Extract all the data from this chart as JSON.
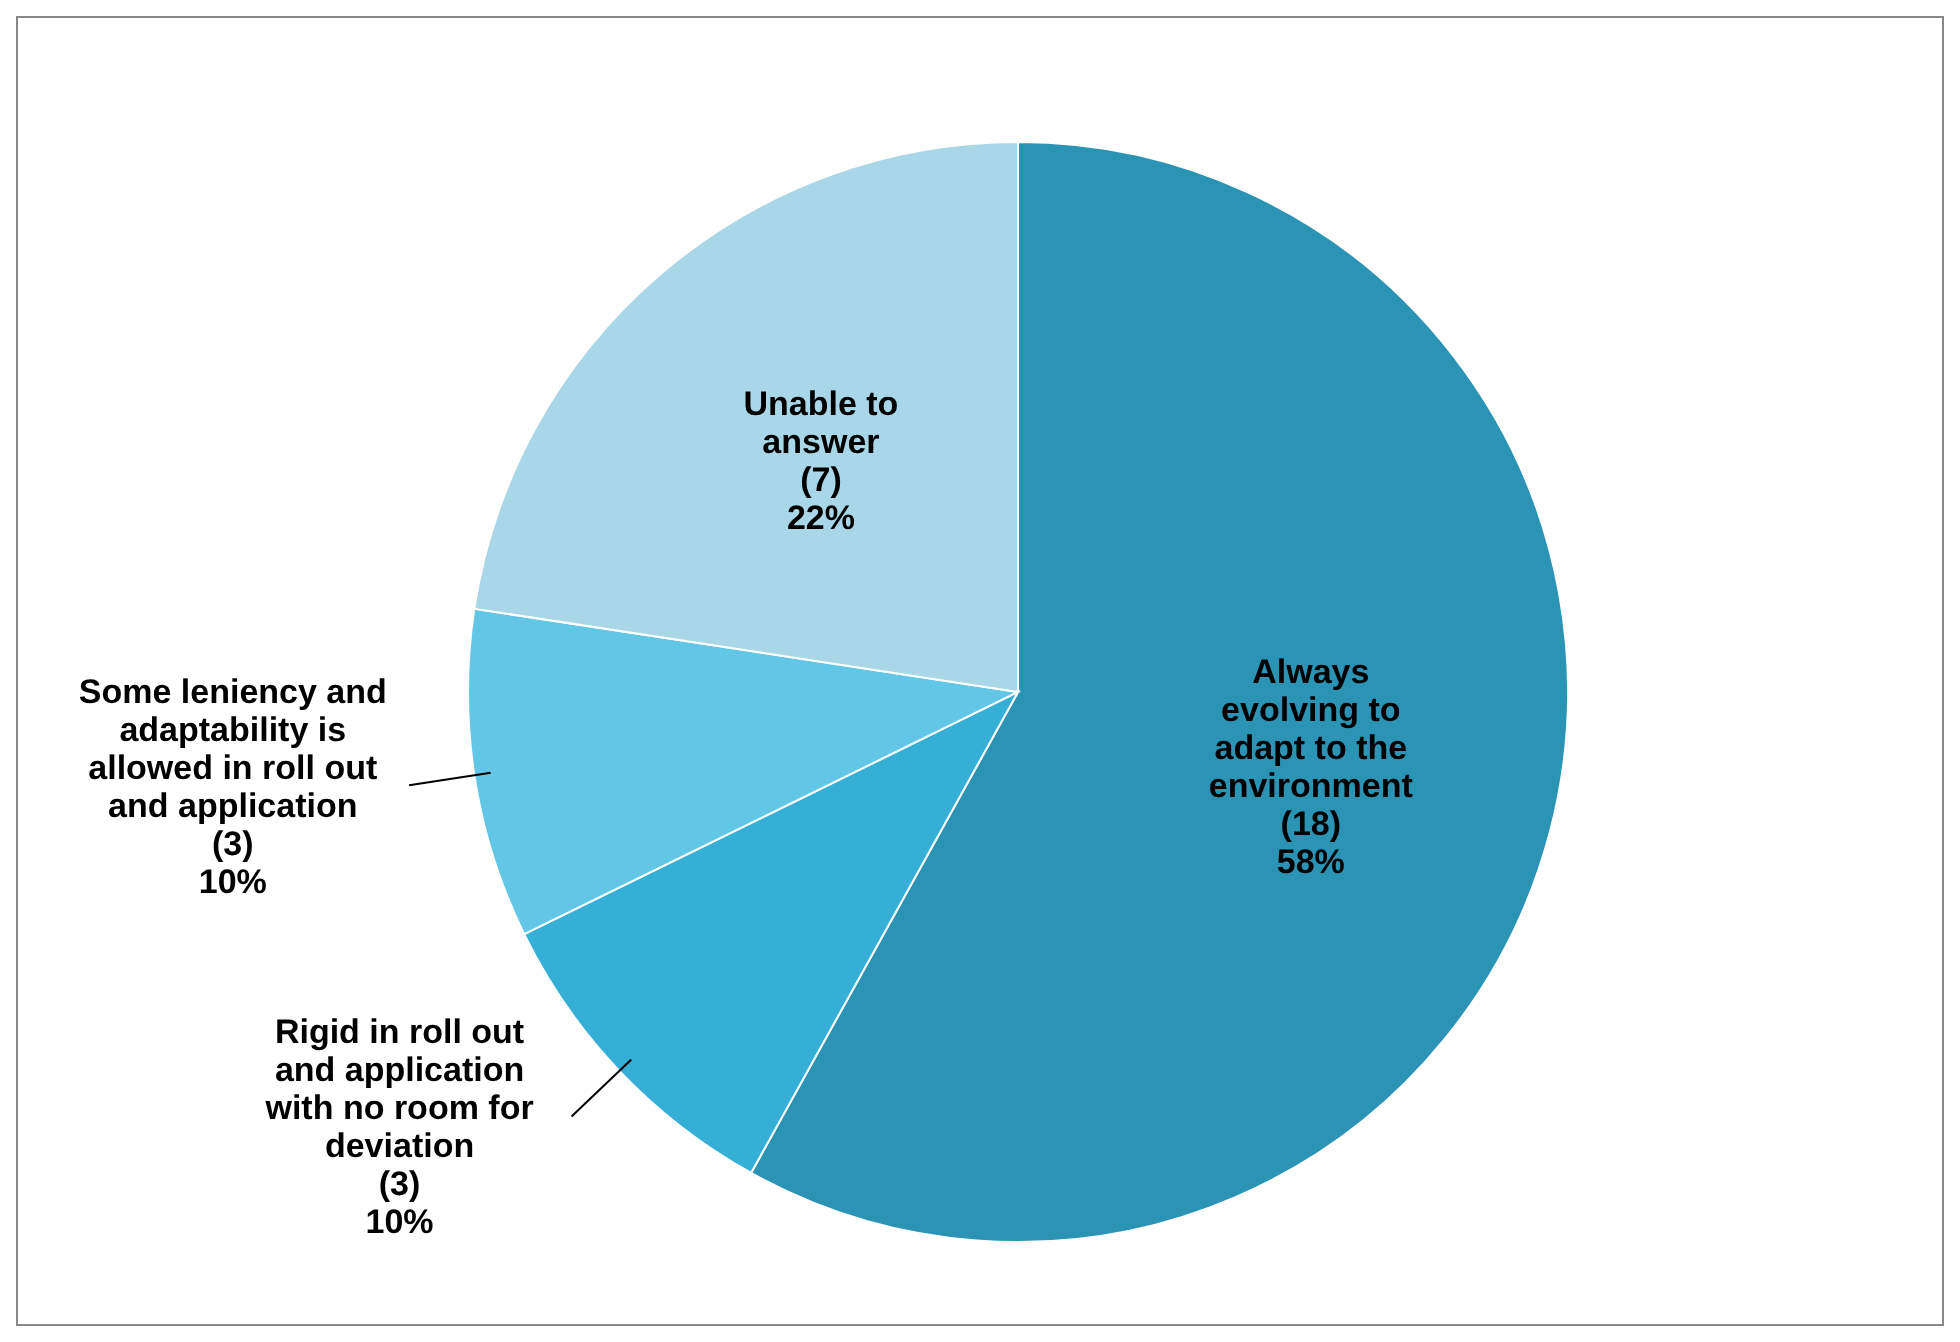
{
  "chart_data": {
    "type": "pie",
    "categories": [
      "Always evolving to adapt to the environment",
      "Rigid in roll out and application with no room for deviation",
      "Some leniency and adaptability is allowed in roll out and application",
      "Unable to answer"
    ],
    "values": [
      18,
      3,
      3,
      7
    ],
    "value_labels": [
      "(18)\n58%",
      "(3)\n10%",
      "(3)\n10%",
      "(7)\n22%"
    ],
    "colors": [
      "#2b93b4",
      "#35afd6",
      "#62c6e6",
      "#a9d7e8"
    ],
    "legend": false
  }
}
